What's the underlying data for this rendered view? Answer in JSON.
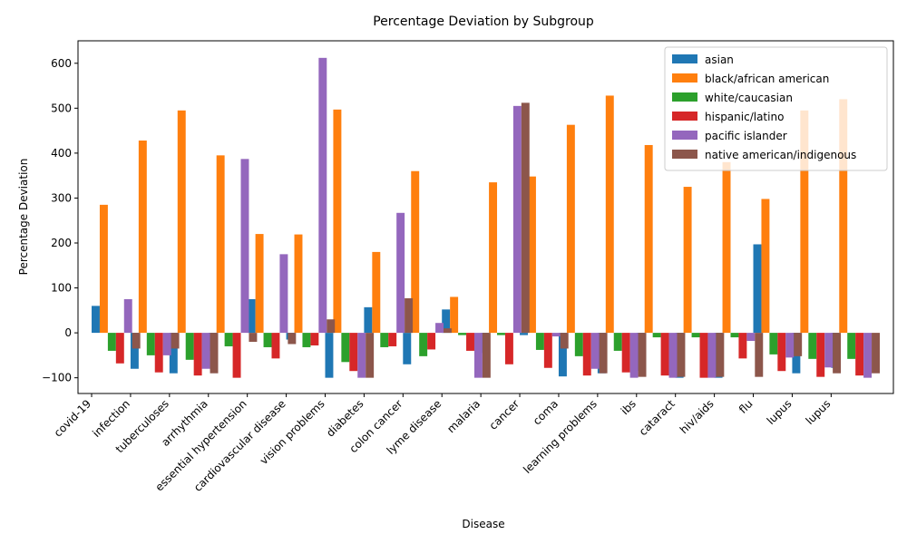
{
  "chart_data": {
    "type": "bar",
    "title": "Percentage Deviation by Subgroup",
    "xlabel": "Disease",
    "ylabel": "Percentage Deviation",
    "ylim": [
      -135,
      650
    ],
    "yticks": [
      -100,
      0,
      100,
      200,
      300,
      400,
      500,
      600
    ],
    "grid": false,
    "legend_position": "top-right",
    "categories": [
      "covid-19",
      "infection",
      "tuberculoses",
      "arrhythmia",
      "essential hypertension",
      "cardiovascular disease",
      "vision problems",
      "diabetes",
      "colon cancer",
      "lyme disease",
      "malaria",
      "cancer",
      "coma",
      "learning problems",
      "ibs",
      "cataract",
      "hiv/aids",
      "flu",
      "lupus",
      "lupus"
    ],
    "bar_slots": [
      {
        "start": 0.0,
        "end": 1.25
      },
      {
        "start": 1.0,
        "end": 2.25
      },
      {
        "start": 2.0,
        "end": 3.25
      },
      {
        "start": 3.0,
        "end": 4.25
      },
      {
        "start": 4.0,
        "end": 5.25
      },
      {
        "start": 5.0,
        "end": 6.25
      },
      {
        "start": 6.0,
        "end": 7.25
      },
      {
        "start": 7.0,
        "end": 8.25
      },
      {
        "start": 8.0,
        "end": 9.25
      },
      {
        "start": 9.0,
        "end": 10.25
      },
      {
        "start": 10.0,
        "end": 11.25
      },
      {
        "start": 11.0,
        "end": 12.25
      },
      {
        "start": 12.0,
        "end": 13.25
      },
      {
        "start": 13.0,
        "end": 14.25
      },
      {
        "start": 14.0,
        "end": 15.25
      },
      {
        "start": 15.0,
        "end": 16.25
      },
      {
        "start": 16.0,
        "end": 17.25
      },
      {
        "start": 17.0,
        "end": 18.25
      },
      {
        "start": 18.0,
        "end": 19.25
      },
      {
        "start": 19.0,
        "end": 20.25
      }
    ],
    "series": [
      {
        "name": "asian",
        "color": "#1f77b4",
        "values": [
          60,
          -80,
          -90,
          -40,
          75,
          -15,
          -100,
          57,
          -70,
          52,
          -45,
          -5,
          -97,
          -90,
          -85,
          -100,
          -100,
          197,
          -90,
          -78
        ]
      },
      {
        "name": "black/african american",
        "color": "#ff7f0e",
        "values": [
          285,
          428,
          495,
          395,
          220,
          219,
          497,
          180,
          360,
          80,
          335,
          348,
          463,
          528,
          418,
          325,
          380,
          298,
          495,
          520
        ]
      },
      {
        "name": "white/caucasian",
        "color": "#2ca02c",
        "values": [
          -40,
          -50,
          -60,
          -30,
          -32,
          -32,
          -65,
          -32,
          -52,
          -5,
          -5,
          -38,
          -52,
          -40,
          -10,
          -10,
          -10,
          -48,
          -58,
          -58
        ]
      },
      {
        "name": "hispanic/latino",
        "color": "#d62728",
        "values": [
          -68,
          -88,
          -95,
          -100,
          -57,
          -28,
          -85,
          -30,
          -37,
          -40,
          -70,
          -78,
          -95,
          -88,
          -95,
          -100,
          -57,
          -85,
          -98,
          -95
        ]
      },
      {
        "name": "pacific islander",
        "color": "#9467bd",
        "values": [
          75,
          -50,
          -80,
          387,
          175,
          612,
          -100,
          267,
          22,
          -100,
          505,
          -8,
          -80,
          -100,
          -100,
          -100,
          -18,
          -55,
          -77,
          -100
        ]
      },
      {
        "name": "native american/indigenous",
        "color": "#8c564b",
        "values": [
          -35,
          -35,
          -90,
          -20,
          -25,
          30,
          -100,
          77,
          10,
          -100,
          512,
          -35,
          -90,
          -98,
          -98,
          -98,
          -98,
          -52,
          -90,
          -90
        ]
      }
    ]
  }
}
